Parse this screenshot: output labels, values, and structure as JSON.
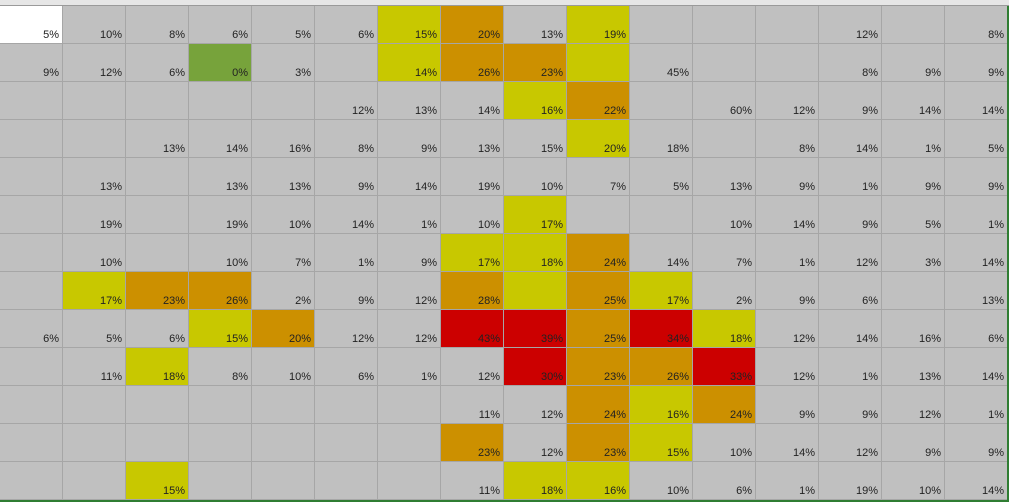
{
  "table": {
    "background": "#c0c0c0",
    "rows": [
      [
        "5%",
        "10%",
        "8%",
        "6%",
        "5%",
        "6%",
        "15%",
        "20%",
        "13%",
        "19%",
        null,
        null,
        null,
        "12%",
        null,
        "8%"
      ],
      [
        "9%",
        "12%",
        "6%",
        "0%",
        "3%",
        null,
        "14%",
        "26%",
        "23%",
        null,
        "45%",
        null,
        null,
        "8%",
        "9%",
        "9%"
      ],
      [
        null,
        null,
        null,
        null,
        null,
        "12%",
        "13%",
        "14%",
        "16%",
        "22%",
        null,
        "60%",
        "12%",
        "9%",
        "14%",
        "14%"
      ],
      [
        null,
        null,
        "13%",
        "14%",
        "16%",
        "8%",
        "9%",
        "13%",
        "15%",
        "20%",
        "18%",
        null,
        "8%",
        "14%",
        "1%",
        "5%"
      ],
      [
        null,
        "13%",
        null,
        "13%",
        "13%",
        "9%",
        "14%",
        "19%",
        "10%",
        "7%",
        "5%",
        "13%",
        "9%",
        "1%",
        "9%",
        "9%"
      ],
      [
        null,
        "19%",
        null,
        "19%",
        "10%",
        "14%",
        "1%",
        "10%",
        "17%",
        null,
        null,
        "10%",
        "14%",
        "9%",
        "5%",
        "1%"
      ],
      [
        null,
        "10%",
        null,
        "10%",
        "7%",
        "1%",
        "9%",
        "17%",
        "18%",
        "24%",
        "14%",
        "7%",
        "1%",
        "12%",
        "3%",
        "14%"
      ],
      [
        null,
        "17%",
        "23%",
        "26%",
        "2%",
        "9%",
        "12%",
        "28%",
        null,
        "25%",
        "17%",
        "2%",
        "9%",
        "6%",
        null,
        "13%"
      ],
      [
        "6%",
        "5%",
        "6%",
        "15%",
        "20%",
        "12%",
        "12%",
        "43%",
        "39%",
        "25%",
        "34%",
        "18%",
        "12%",
        "14%",
        "16%",
        "6%"
      ],
      [
        null,
        "11%",
        "18%",
        "8%",
        "10%",
        "6%",
        "1%",
        "12%",
        "30%",
        "23%",
        "26%",
        "33%",
        "12%",
        "1%",
        "13%",
        "14%"
      ],
      [
        null,
        null,
        null,
        null,
        null,
        null,
        null,
        "11%",
        "12%",
        "24%",
        "16%",
        "24%",
        "9%",
        "9%",
        "12%",
        "1%"
      ],
      [
        null,
        null,
        null,
        null,
        null,
        null,
        null,
        "23%",
        "12%",
        "23%",
        "15%",
        "10%",
        "14%",
        "12%",
        "9%",
        "9%"
      ],
      [
        null,
        null,
        "15%",
        null,
        null,
        null,
        null,
        "11%",
        "18%",
        "16%",
        "10%",
        "6%",
        "1%",
        "19%",
        "10%",
        "14%"
      ]
    ],
    "fills": [
      [
        "#ffffff",
        null,
        null,
        null,
        null,
        null,
        "#c8c800",
        "#cc9000",
        null,
        "#c8c800",
        null,
        null,
        null,
        null,
        null,
        null
      ],
      [
        null,
        null,
        null,
        "#77a33b",
        null,
        null,
        "#c8c800",
        "#cc9000",
        "#cc9000",
        "#c8c800",
        null,
        null,
        null,
        null,
        null,
        null
      ],
      [
        null,
        null,
        null,
        null,
        null,
        null,
        null,
        null,
        "#c8c800",
        "#cc9000",
        null,
        null,
        null,
        null,
        null,
        null
      ],
      [
        null,
        null,
        null,
        null,
        null,
        null,
        null,
        null,
        null,
        "#c8c800",
        null,
        null,
        null,
        null,
        null,
        null
      ],
      [
        null,
        null,
        null,
        null,
        null,
        null,
        null,
        null,
        null,
        null,
        null,
        null,
        null,
        null,
        null,
        null
      ],
      [
        null,
        null,
        null,
        null,
        null,
        null,
        null,
        null,
        "#c8c800",
        null,
        null,
        null,
        null,
        null,
        null,
        null
      ],
      [
        null,
        null,
        null,
        null,
        null,
        null,
        null,
        "#c8c800",
        "#c8c800",
        "#cc9000",
        null,
        null,
        null,
        null,
        null,
        null
      ],
      [
        null,
        "#c8c800",
        "#cc9000",
        "#cc9000",
        null,
        null,
        null,
        "#cc9000",
        "#c8c800",
        "#cc9000",
        "#c8c800",
        null,
        null,
        null,
        null,
        null
      ],
      [
        null,
        null,
        null,
        "#c8c800",
        "#cc9000",
        null,
        null,
        "#cc0000",
        "#cc0000",
        "#cc9000",
        "#cc0000",
        "#c8c800",
        null,
        null,
        null,
        null
      ],
      [
        null,
        null,
        "#c8c800",
        null,
        null,
        null,
        null,
        null,
        "#cc0000",
        "#cc9000",
        "#cc9000",
        "#cc0000",
        null,
        null,
        null,
        null
      ],
      [
        null,
        null,
        null,
        null,
        null,
        null,
        null,
        null,
        null,
        "#cc9000",
        "#c8c800",
        "#cc9000",
        null,
        null,
        null,
        null
      ],
      [
        null,
        null,
        null,
        null,
        null,
        null,
        null,
        "#cc9000",
        null,
        "#cc9000",
        "#c8c800",
        null,
        null,
        null,
        null,
        null
      ],
      [
        null,
        null,
        "#c8c800",
        null,
        null,
        null,
        null,
        null,
        "#c8c800",
        "#c8c800",
        null,
        null,
        null,
        null,
        null,
        null
      ]
    ]
  }
}
